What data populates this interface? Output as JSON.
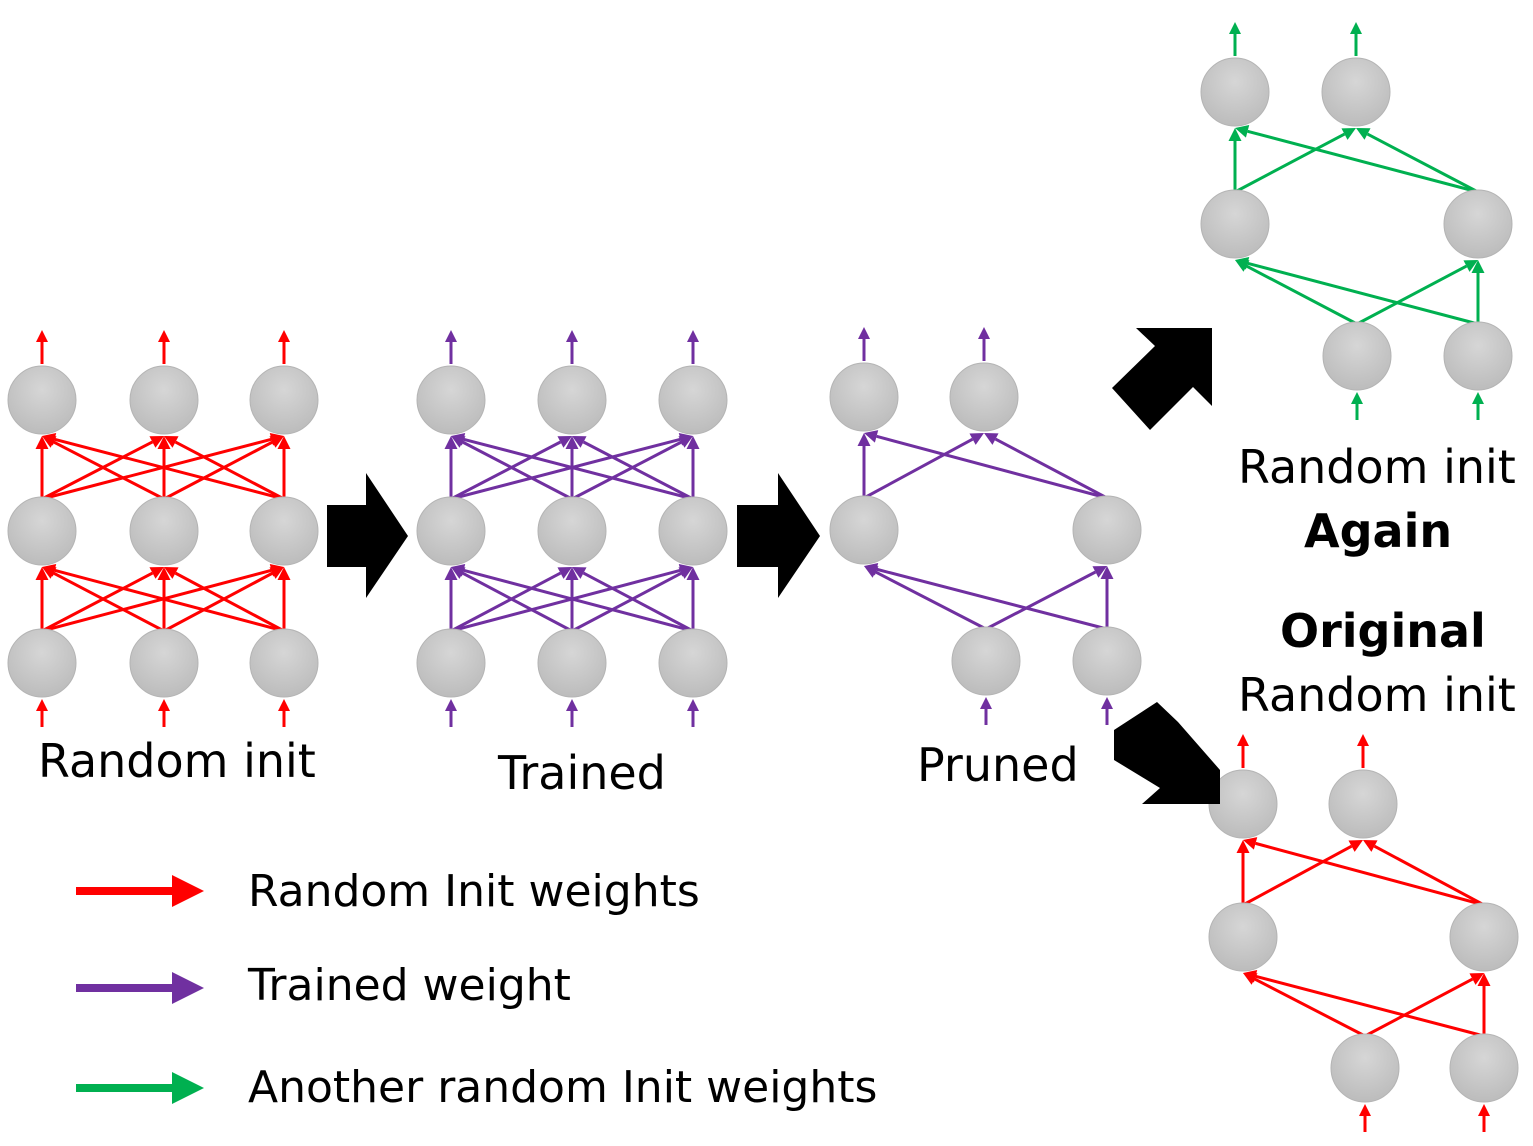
{
  "colors": {
    "random_init": "#ff0000",
    "trained": "#7030a0",
    "another_random": "#00b050",
    "node_fill": "#c8c8c8",
    "big_arrow": "#000000"
  },
  "labels": {
    "random_init": "Random init",
    "trained": "Trained",
    "pruned": "Pruned",
    "random_init_again_line1": "Random init",
    "random_init_again_line2": "Again",
    "original_line1": "Original",
    "original_line2": "Random init"
  },
  "legend": [
    {
      "label": "Random Init weights",
      "color": "#ff0000"
    },
    {
      "label": "Trained weight",
      "color": "#7030a0"
    },
    {
      "label": "Another random Init weights",
      "color": "#00b050"
    }
  ],
  "networks": [
    {
      "name": "random-init-network",
      "color_key": "random_init",
      "layers": 3,
      "nodes_per_layer": 3
    },
    {
      "name": "trained-network",
      "color_key": "trained",
      "layers": 3,
      "nodes_per_layer": 3
    },
    {
      "name": "pruned-network",
      "color_key": "trained",
      "layers": 3,
      "nodes_per_layer": 2
    },
    {
      "name": "random-init-again-network",
      "color_key": "another_random",
      "layers": 3,
      "nodes_per_layer": 2
    },
    {
      "name": "original-random-init-network",
      "color_key": "random_init",
      "layers": 3,
      "nodes_per_layer": 2
    }
  ]
}
